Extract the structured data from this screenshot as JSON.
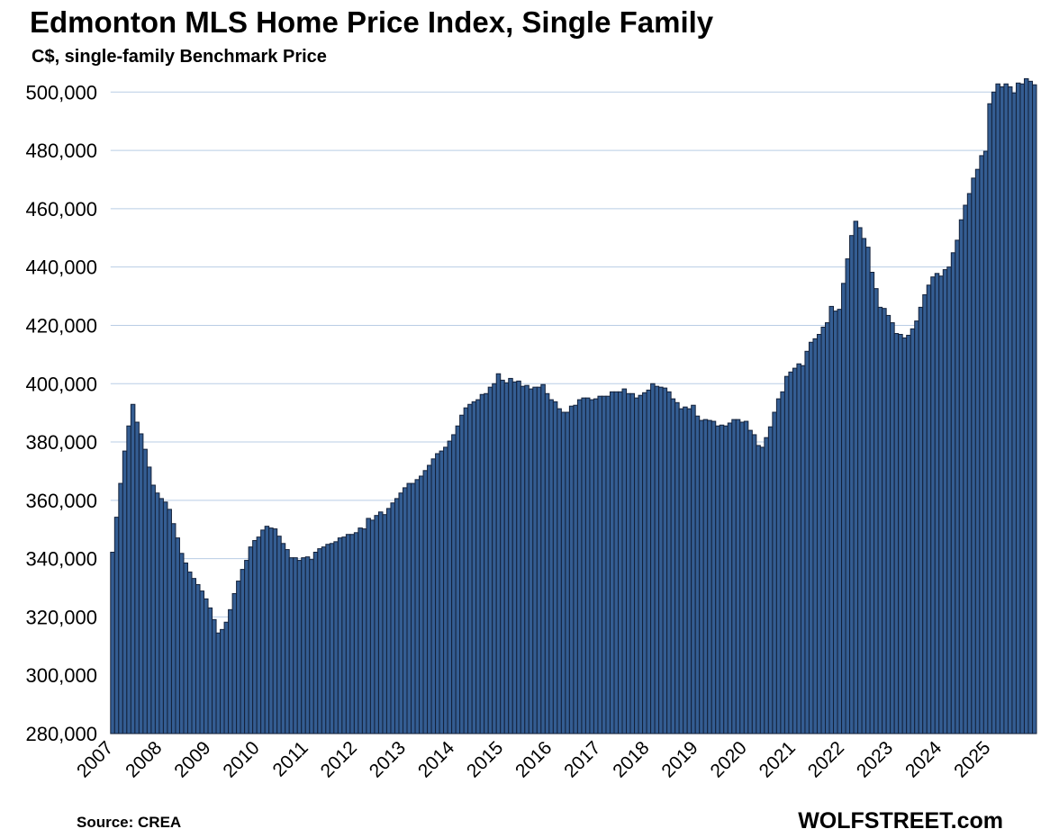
{
  "chart_data": {
    "type": "bar",
    "title": "Edmonton MLS Home Price Index, Single Family",
    "subtitle": "C$, single-family Benchmark Price",
    "xlabel": "",
    "ylabel": "",
    "source": "Source: CREA",
    "brand": "WOLFSTREET.com",
    "frequency": "monthly",
    "start": "2007-01",
    "x_tick_labels": [
      "2007",
      "2008",
      "2009",
      "2010",
      "2011",
      "2012",
      "2013",
      "2014",
      "2015",
      "2016",
      "2017",
      "2018",
      "2019",
      "2020",
      "2021",
      "2022",
      "2023",
      "2024",
      "2025"
    ],
    "y_ticks": [
      280000,
      300000,
      320000,
      340000,
      360000,
      380000,
      400000,
      420000,
      440000,
      460000,
      480000,
      500000
    ],
    "y_tick_labels": [
      "280,000",
      "300,000",
      "320,000",
      "340,000",
      "360,000",
      "380,000",
      "400,000",
      "420,000",
      "440,000",
      "460,000",
      "480,000",
      "500,000"
    ],
    "ylim": [
      280000,
      506000
    ],
    "grid": true,
    "legend": "none",
    "colors": {
      "bar": "#345d92",
      "bar_edge": "#13213a",
      "grid": "#b9cde5"
    },
    "values": [
      342200,
      354200,
      365800,
      376900,
      385500,
      392900,
      386800,
      382800,
      377500,
      371400,
      365200,
      362500,
      360600,
      359400,
      356900,
      352000,
      347100,
      341800,
      338500,
      335400,
      333200,
      331100,
      328900,
      326200,
      323100,
      319100,
      314500,
      315700,
      318200,
      322500,
      328000,
      332300,
      336300,
      339400,
      344000,
      346200,
      347400,
      349800,
      351100,
      350500,
      350200,
      347700,
      345200,
      343100,
      340300,
      340300,
      339400,
      340300,
      340600,
      339700,
      342200,
      343400,
      344000,
      344900,
      345200,
      345800,
      347100,
      347400,
      348300,
      348300,
      348900,
      350500,
      350200,
      353800,
      353200,
      354800,
      356000,
      355100,
      357200,
      359100,
      360600,
      362500,
      364300,
      365800,
      365800,
      367100,
      368300,
      370200,
      372000,
      374200,
      376000,
      376900,
      378200,
      380300,
      382500,
      385500,
      389200,
      391700,
      392900,
      393800,
      394500,
      396300,
      396600,
      398800,
      400000,
      403400,
      401200,
      400300,
      401800,
      400600,
      400900,
      399100,
      399400,
      398200,
      398800,
      398800,
      399700,
      396600,
      394500,
      393800,
      391400,
      390200,
      390200,
      392300,
      392600,
      394500,
      395100,
      395100,
      394500,
      394800,
      395700,
      395700,
      395700,
      397200,
      397200,
      397200,
      398200,
      396600,
      396600,
      395100,
      396000,
      396900,
      397800,
      400000,
      399100,
      398800,
      398500,
      397200,
      394800,
      393500,
      391400,
      392000,
      391400,
      392600,
      388900,
      387400,
      387700,
      387400,
      387100,
      385500,
      385800,
      385500,
      386500,
      387700,
      387700,
      386800,
      387100,
      384000,
      382500,
      378800,
      378200,
      381500,
      385200,
      390200,
      394800,
      397200,
      402500,
      404000,
      405300,
      406800,
      406200,
      411100,
      414200,
      415400,
      416900,
      419400,
      420900,
      426500,
      424900,
      425500,
      434400,
      442800,
      450800,
      455700,
      453500,
      449800,
      446800,
      438200,
      432600,
      426200,
      425800,
      423400,
      420900,
      417200,
      416900,
      415700,
      416600,
      418800,
      421500,
      426200,
      430500,
      433800,
      436600,
      437800,
      436900,
      439100,
      440000,
      444900,
      449200,
      456200,
      461200,
      465200,
      470500,
      473500,
      478200,
      479700,
      496000,
      500000,
      502800,
      501800,
      502800,
      501800,
      499700,
      503100,
      502800,
      504600,
      503700,
      502500
    ]
  }
}
